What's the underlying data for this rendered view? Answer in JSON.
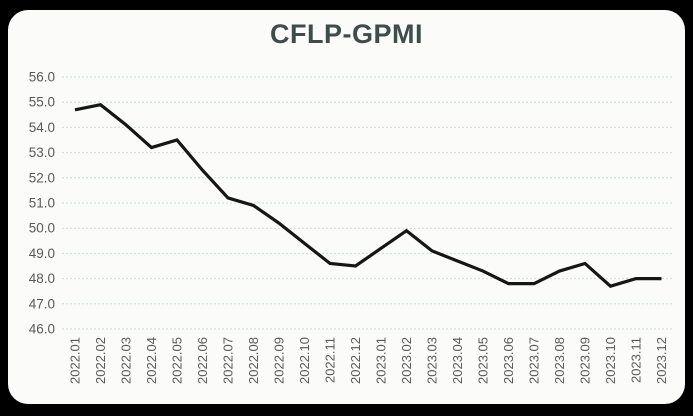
{
  "chart_data": {
    "type": "line",
    "title": "CFLP-GPMI",
    "categories": [
      "2022.01",
      "2022.02",
      "2022.03",
      "2022.04",
      "2022.05",
      "2022.06",
      "2022.07",
      "2022.08",
      "2022.09",
      "2022.10",
      "2022.11",
      "2022.12",
      "2023.01",
      "2023.02",
      "2023.03",
      "2023.04",
      "2023.05",
      "2023.06",
      "2023.07",
      "2023.08",
      "2023.09",
      "2023.10",
      "2023.11",
      "2023.12"
    ],
    "series": [
      {
        "name": "CFLP-GPMI",
        "values": [
          54.7,
          54.9,
          54.1,
          53.2,
          53.5,
          52.3,
          51.2,
          50.9,
          50.2,
          49.4,
          48.6,
          48.5,
          49.2,
          49.9,
          49.1,
          48.7,
          48.3,
          47.8,
          47.8,
          48.3,
          48.6,
          47.7,
          48.0,
          48.0
        ]
      }
    ],
    "xlabel": "",
    "ylabel": "",
    "ylim": [
      46.0,
      56.0
    ],
    "ytick_step": 1.0,
    "yticks": [
      "56.0",
      "55.0",
      "54.0",
      "53.0",
      "52.0",
      "51.0",
      "50.0",
      "49.0",
      "48.0",
      "47.0",
      "46.0"
    ],
    "grid": "horizontal-dashed",
    "legend_position": "none",
    "x_label_rotation_deg": 90,
    "colors": {
      "page_background": "#000000",
      "card_background": "#fbfbfa",
      "line": "#161616",
      "gridline": "#ccdcda",
      "title": "#3e4c4c",
      "tick_label": "#595959"
    }
  }
}
